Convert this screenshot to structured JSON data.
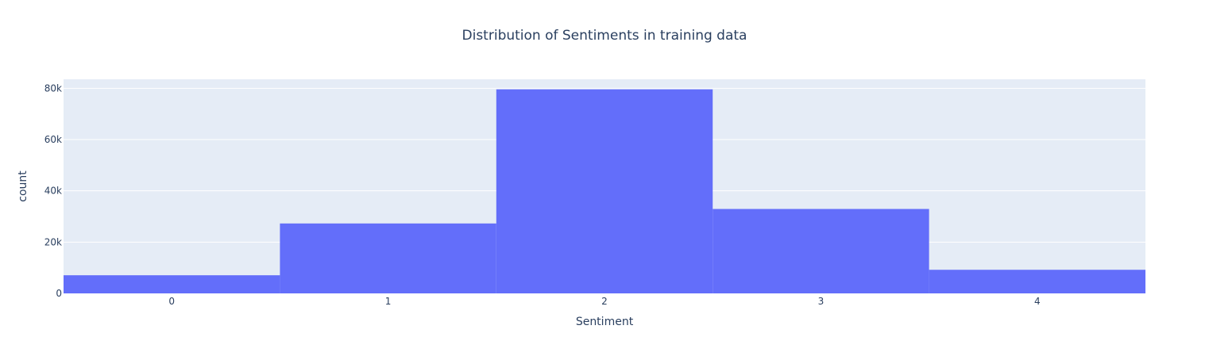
{
  "chart_data": {
    "type": "bar",
    "title": "Distribution of Sentiments in training data",
    "xlabel": "Sentiment",
    "ylabel": "count",
    "categories": [
      "0",
      "1",
      "2",
      "3",
      "4"
    ],
    "x": [
      0,
      1,
      2,
      3,
      4
    ],
    "values": [
      7072,
      27273,
      79582,
      32927,
      9206
    ],
    "ylim": [
      0,
      83500
    ],
    "y_ticks": [
      0,
      20000,
      40000,
      60000,
      80000
    ],
    "y_tick_labels": [
      "0",
      "20k",
      "40k",
      "60k",
      "80k"
    ],
    "grid": true,
    "legend": "none",
    "colors": {
      "bar": "#636efa",
      "plot_background": "#e5ecf6",
      "gridline": "#ffffff",
      "text": "#2a3f5f"
    }
  }
}
